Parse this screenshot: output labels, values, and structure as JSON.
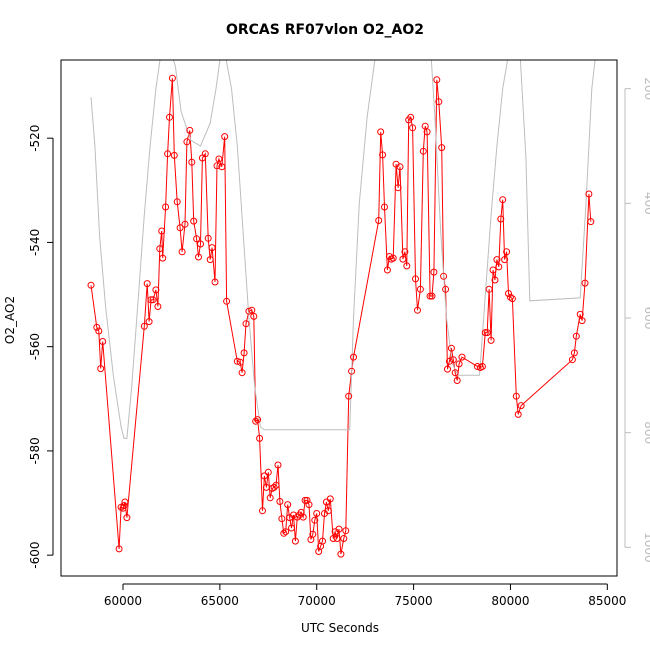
{
  "chart_data": {
    "type": "line",
    "title": "ORCAS RF07vlon O2_AO2",
    "xlabel": "UTC Seconds",
    "ylabel": "O2_AO2",
    "xlim": [
      56800,
      85500
    ],
    "ylim": [
      -604,
      -505
    ],
    "x_ticks": [
      60000,
      65000,
      70000,
      75000,
      80000,
      85000
    ],
    "x_tick_labels": [
      "60000",
      "65000",
      "70000",
      "75000",
      "80000",
      "85000"
    ],
    "y_ticks": [
      -600,
      -580,
      -560,
      -540,
      -520
    ],
    "y_tick_labels": [
      "-600",
      "-580",
      "-560",
      "-540",
      "-520"
    ],
    "y2lim": [
      1050,
      150
    ],
    "y2_ticks": [
      200,
      400,
      600,
      800,
      1000
    ],
    "y2_tick_labels": [
      "200",
      "400",
      "600",
      "800",
      "1000"
    ],
    "colors": {
      "primary": "#ff0000",
      "secondary": "#bdbdbd",
      "axes": "#000000"
    },
    "grid": false,
    "series": [
      {
        "axis": "left",
        "marker": "open-circle",
        "color": "#ff0000",
        "points": [
          [
            58350,
            -548.2
          ],
          [
            58650,
            -556.3
          ],
          [
            58750,
            -557.0
          ],
          [
            58850,
            -564.2
          ],
          [
            58950,
            -559.0
          ],
          [
            59800,
            -598.8
          ],
          [
            59900,
            -590.8
          ],
          [
            60000,
            -591.0
          ],
          [
            60050,
            -590.5
          ],
          [
            60100,
            -589.8
          ],
          [
            60200,
            -592.8
          ],
          [
            61100,
            -556.1
          ],
          [
            61250,
            -547.9
          ],
          [
            61350,
            -555.2
          ],
          [
            61450,
            -551.0
          ],
          [
            61550,
            -551.0
          ],
          [
            61700,
            -549.1
          ],
          [
            61800,
            -552.3
          ],
          [
            61900,
            -541.2
          ],
          [
            62000,
            -537.8
          ],
          [
            62050,
            -543.0
          ],
          [
            62200,
            -533.2
          ],
          [
            62300,
            -523.0
          ],
          [
            62400,
            -516.0
          ],
          [
            62550,
            -508.5
          ],
          [
            62650,
            -523.3
          ],
          [
            62800,
            -532.2
          ],
          [
            62950,
            -537.2
          ],
          [
            63050,
            -541.8
          ],
          [
            63200,
            -536.5
          ],
          [
            63300,
            -520.7
          ],
          [
            63450,
            -518.5
          ],
          [
            63550,
            -524.6
          ],
          [
            63650,
            -535.9
          ],
          [
            63800,
            -539.3
          ],
          [
            63900,
            -542.8
          ],
          [
            64000,
            -540.3
          ],
          [
            64100,
            -523.8
          ],
          [
            64250,
            -523.0
          ],
          [
            64400,
            -539.2
          ],
          [
            64500,
            -543.3
          ],
          [
            64600,
            -541.0
          ],
          [
            64750,
            -547.6
          ],
          [
            64850,
            -525.3
          ],
          [
            64950,
            -524.0
          ],
          [
            65100,
            -525.5
          ],
          [
            65250,
            -519.7
          ],
          [
            65350,
            -551.3
          ],
          [
            65900,
            -562.8
          ],
          [
            66050,
            -563.0
          ],
          [
            66150,
            -565.0
          ],
          [
            66250,
            -561.2
          ],
          [
            66350,
            -555.6
          ],
          [
            66500,
            -553.2
          ],
          [
            66650,
            -553.0
          ],
          [
            66750,
            -554.2
          ],
          [
            66850,
            -574.3
          ],
          [
            66950,
            -574.0
          ],
          [
            67050,
            -577.6
          ],
          [
            67200,
            -591.5
          ],
          [
            67300,
            -584.8
          ],
          [
            67400,
            -587.0
          ],
          [
            67500,
            -584.1
          ],
          [
            67600,
            -589.0
          ],
          [
            67700,
            -587.2
          ],
          [
            67800,
            -587.0
          ],
          [
            67900,
            -586.6
          ],
          [
            68000,
            -582.7
          ],
          [
            68100,
            -589.7
          ],
          [
            68200,
            -593.0
          ],
          [
            68300,
            -595.8
          ],
          [
            68400,
            -595.5
          ],
          [
            68500,
            -590.3
          ],
          [
            68600,
            -592.8
          ],
          [
            68700,
            -594.8
          ],
          [
            68800,
            -592.3
          ],
          [
            68900,
            -597.3
          ],
          [
            69000,
            -592.7
          ],
          [
            69100,
            -592.3
          ],
          [
            69200,
            -591.8
          ],
          [
            69300,
            -592.7
          ],
          [
            69400,
            -589.5
          ],
          [
            69500,
            -589.5
          ],
          [
            69600,
            -590.3
          ],
          [
            69700,
            -597.0
          ],
          [
            69800,
            -596.0
          ],
          [
            69900,
            -593.3
          ],
          [
            70000,
            -592.0
          ],
          [
            70100,
            -599.3
          ],
          [
            70200,
            -598.3
          ],
          [
            70300,
            -597.3
          ],
          [
            70400,
            -592.0
          ],
          [
            70500,
            -589.8
          ],
          [
            70600,
            -591.5
          ],
          [
            70700,
            -589.2
          ],
          [
            70850,
            -596.8
          ],
          [
            70950,
            -595.5
          ],
          [
            71050,
            -596.8
          ],
          [
            71150,
            -595.0
          ],
          [
            71250,
            -599.8
          ],
          [
            71400,
            -596.8
          ],
          [
            71500,
            -595.3
          ],
          [
            71650,
            -569.5
          ],
          [
            71800,
            -564.7
          ],
          [
            71900,
            -562.0
          ],
          [
            73200,
            -535.8
          ],
          [
            73300,
            -518.8
          ],
          [
            73400,
            -523.2
          ],
          [
            73500,
            -533.2
          ],
          [
            73650,
            -545.3
          ],
          [
            73750,
            -542.7
          ],
          [
            73850,
            -543.2
          ],
          [
            73950,
            -543.0
          ],
          [
            74100,
            -525.0
          ],
          [
            74200,
            -529.5
          ],
          [
            74300,
            -525.5
          ],
          [
            74450,
            -543.2
          ],
          [
            74550,
            -541.8
          ],
          [
            74650,
            -544.5
          ],
          [
            74750,
            -516.5
          ],
          [
            74850,
            -516.0
          ],
          [
            74950,
            -518.0
          ],
          [
            75100,
            -547.0
          ],
          [
            75200,
            -553.0
          ],
          [
            75350,
            -549.0
          ],
          [
            75500,
            -522.5
          ],
          [
            75600,
            -517.7
          ],
          [
            75700,
            -518.8
          ],
          [
            75850,
            -550.3
          ],
          [
            75950,
            -550.3
          ],
          [
            76050,
            -545.7
          ],
          [
            76200,
            -508.8
          ],
          [
            76300,
            -513.0
          ],
          [
            76450,
            -521.8
          ],
          [
            76550,
            -546.5
          ],
          [
            76650,
            -549.0
          ],
          [
            76750,
            -564.3
          ],
          [
            76850,
            -562.8
          ],
          [
            76950,
            -560.3
          ],
          [
            77050,
            -562.5
          ],
          [
            77150,
            -565.0
          ],
          [
            77250,
            -566.5
          ],
          [
            77350,
            -563.3
          ],
          [
            77500,
            -562.0
          ],
          [
            78300,
            -563.8
          ],
          [
            78450,
            -564.0
          ],
          [
            78550,
            -563.8
          ],
          [
            78700,
            -557.3
          ],
          [
            78800,
            -557.3
          ],
          [
            78900,
            -549.0
          ],
          [
            79000,
            -558.8
          ],
          [
            79100,
            -545.3
          ],
          [
            79200,
            -547.2
          ],
          [
            79300,
            -543.3
          ],
          [
            79400,
            -544.7
          ],
          [
            79500,
            -535.5
          ],
          [
            79600,
            -531.8
          ],
          [
            79700,
            -543.3
          ],
          [
            79800,
            -541.8
          ],
          [
            79900,
            -549.8
          ],
          [
            80000,
            -550.5
          ],
          [
            80100,
            -550.8
          ],
          [
            80300,
            -569.5
          ],
          [
            80400,
            -573.0
          ],
          [
            80550,
            -571.3
          ],
          [
            83200,
            -562.5
          ],
          [
            83300,
            -561.2
          ],
          [
            83400,
            -558.0
          ],
          [
            83600,
            -553.8
          ],
          [
            83700,
            -555.0
          ],
          [
            83850,
            -547.8
          ],
          [
            84050,
            -530.7
          ],
          [
            84150,
            -536.0
          ]
        ]
      },
      {
        "axis": "right",
        "marker": "none",
        "color": "#bdbdbd",
        "points": [
          [
            58350,
            215
          ],
          [
            58550,
            300
          ],
          [
            58800,
            460
          ],
          [
            59100,
            580
          ],
          [
            59500,
            700
          ],
          [
            59900,
            790
          ],
          [
            60050,
            810
          ],
          [
            60200,
            810
          ],
          [
            60450,
            720
          ],
          [
            60800,
            560
          ],
          [
            61100,
            420
          ],
          [
            61400,
            300
          ],
          [
            61700,
            200
          ],
          [
            61950,
            140
          ],
          [
            62500,
            140
          ],
          [
            62700,
            160
          ],
          [
            63000,
            240
          ],
          [
            63500,
            290
          ],
          [
            64000,
            300
          ],
          [
            64500,
            260
          ],
          [
            64800,
            200
          ],
          [
            65000,
            150
          ],
          [
            65300,
            145
          ],
          [
            65600,
            200
          ],
          [
            65900,
            300
          ],
          [
            66200,
            450
          ],
          [
            66500,
            600
          ],
          [
            66800,
            720
          ],
          [
            67100,
            790
          ],
          [
            67300,
            795
          ],
          [
            71700,
            795
          ],
          [
            71900,
            600
          ],
          [
            72200,
            400
          ],
          [
            72600,
            250
          ],
          [
            73000,
            150
          ],
          [
            73400,
            140
          ],
          [
            75900,
            140
          ],
          [
            76100,
            250
          ],
          [
            76400,
            450
          ],
          [
            76700,
            600
          ],
          [
            77000,
            680
          ],
          [
            77300,
            700
          ],
          [
            78400,
            700
          ],
          [
            78700,
            560
          ],
          [
            79000,
            420
          ],
          [
            79300,
            300
          ],
          [
            79600,
            200
          ],
          [
            79900,
            140
          ],
          [
            80500,
            140
          ],
          [
            80800,
            320
          ],
          [
            81000,
            570
          ],
          [
            83600,
            565
          ],
          [
            83900,
            400
          ],
          [
            84200,
            200
          ],
          [
            84400,
            140
          ]
        ]
      }
    ]
  }
}
